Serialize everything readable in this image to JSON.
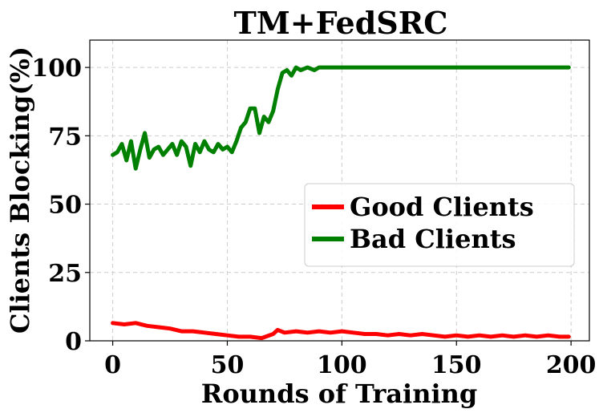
{
  "chart_data": {
    "type": "line",
    "title": "TM+FedSRC",
    "xlabel": "Rounds of Training",
    "ylabel": "Clients Blocking(%)",
    "xlim": [
      -10,
      208
    ],
    "ylim": [
      0,
      110
    ],
    "xticks": [
      0,
      50,
      100,
      150,
      200
    ],
    "yticks": [
      0,
      25,
      50,
      75,
      100
    ],
    "grid": true,
    "legend_position": "center-right",
    "series": [
      {
        "name": "Good Clients",
        "color": "#ff0000",
        "x": [
          0,
          5,
          10,
          15,
          20,
          25,
          30,
          35,
          40,
          45,
          50,
          55,
          60,
          65,
          70,
          72,
          75,
          80,
          85,
          90,
          95,
          100,
          105,
          110,
          115,
          120,
          125,
          130,
          135,
          140,
          145,
          150,
          155,
          160,
          165,
          170,
          175,
          180,
          185,
          190,
          195,
          199
        ],
        "y": [
          6.5,
          6,
          6.5,
          5.5,
          5,
          4.5,
          3.5,
          3.5,
          3,
          2.5,
          2,
          1.5,
          1.5,
          1,
          2.5,
          4,
          3,
          3.5,
          3,
          3.5,
          3,
          3.5,
          3,
          2.5,
          2.5,
          2,
          2.5,
          2,
          2.5,
          2,
          1.5,
          2,
          1.5,
          2,
          1.5,
          2,
          1.5,
          2,
          1.5,
          2,
          1.5,
          1.5
        ]
      },
      {
        "name": "Bad Clients",
        "color": "#008000",
        "x": [
          0,
          2,
          4,
          6,
          8,
          10,
          12,
          14,
          16,
          18,
          20,
          22,
          24,
          26,
          28,
          30,
          32,
          34,
          36,
          38,
          40,
          42,
          44,
          46,
          48,
          50,
          52,
          54,
          56,
          58,
          60,
          62,
          64,
          66,
          68,
          70,
          72,
          74,
          76,
          78,
          80,
          82,
          85,
          88,
          90,
          95,
          100,
          110,
          120,
          130,
          140,
          150,
          160,
          170,
          180,
          190,
          199
        ],
        "y": [
          68,
          69,
          72,
          66,
          73,
          63,
          70,
          76,
          67,
          70,
          71,
          68,
          70,
          72,
          68,
          73,
          71,
          64,
          72,
          69,
          73,
          70,
          69,
          72,
          70,
          71,
          69,
          73,
          78,
          80,
          85,
          85,
          76,
          82,
          80,
          84,
          92,
          98,
          99,
          97,
          100,
          99,
          100,
          99,
          100,
          100,
          100,
          100,
          100,
          100,
          100,
          100,
          100,
          100,
          100,
          100,
          100
        ]
      }
    ]
  }
}
